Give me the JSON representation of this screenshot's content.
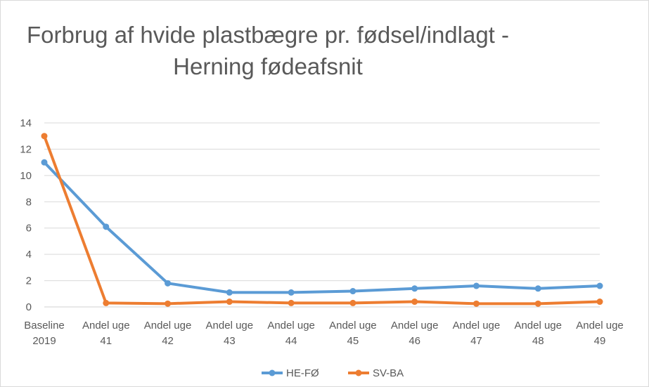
{
  "chart_data": {
    "type": "line",
    "title_line1": "Forbrug af hvide plastbægre pr. fødsel/indlagt -",
    "title_line2": "Herning fødeafsnit",
    "xlabel": "",
    "ylabel": "",
    "ylim": [
      0,
      14
    ],
    "yticks": [
      0,
      2,
      4,
      6,
      8,
      10,
      12,
      14
    ],
    "grid": true,
    "legend_position": "bottom",
    "categories": [
      [
        "Baseline",
        "2019"
      ],
      [
        "Andel uge",
        "41"
      ],
      [
        "Andel uge",
        "42"
      ],
      [
        "Andel uge",
        "43"
      ],
      [
        "Andel uge",
        "44"
      ],
      [
        "Andel uge",
        "45"
      ],
      [
        "Andel uge",
        "46"
      ],
      [
        "Andel uge",
        "47"
      ],
      [
        "Andel uge",
        "48"
      ],
      [
        "Andel uge",
        "49"
      ]
    ],
    "series": [
      {
        "name": "HE-FØ",
        "color": "#5b9bd5",
        "values": [
          11.0,
          6.1,
          1.8,
          1.1,
          1.1,
          1.2,
          1.4,
          1.6,
          1.4,
          1.6
        ]
      },
      {
        "name": "SV-BA",
        "color": "#ed7d31",
        "values": [
          13.0,
          0.3,
          0.25,
          0.4,
          0.3,
          0.3,
          0.4,
          0.25,
          0.25,
          0.4
        ]
      }
    ]
  }
}
